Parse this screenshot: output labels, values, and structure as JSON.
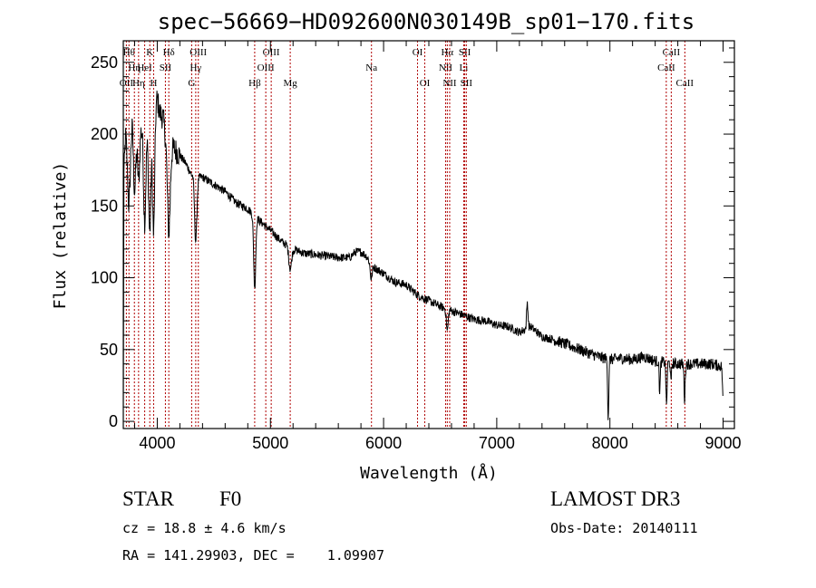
{
  "chart_data": {
    "type": "line",
    "title": "spec−56669−HD092600N030149B_sp01−170.fits",
    "xlabel": "Wavelength (Å)",
    "ylabel": "Flux (relative)",
    "xlim": [
      3700,
      9100
    ],
    "ylim": [
      -5,
      265
    ],
    "xticks": [
      4000,
      5000,
      6000,
      7000,
      8000,
      9000
    ],
    "yticks": [
      0,
      50,
      100,
      150,
      200,
      250
    ],
    "series": [
      {
        "name": "flux",
        "anchors": [
          [
            3700,
            5
          ],
          [
            3705,
            170
          ],
          [
            3720,
            200
          ],
          [
            3750,
            190
          ],
          [
            3780,
            215
          ],
          [
            3800,
            200
          ],
          [
            3830,
            215
          ],
          [
            3860,
            205
          ],
          [
            3890,
            210
          ],
          [
            3920,
            200
          ],
          [
            3950,
            215
          ],
          [
            3980,
            225
          ],
          [
            4000,
            225
          ],
          [
            4020,
            215
          ],
          [
            4050,
            212
          ],
          [
            4080,
            195
          ],
          [
            4120,
            190
          ],
          [
            4150,
            190
          ],
          [
            4200,
            185
          ],
          [
            4250,
            180
          ],
          [
            4300,
            172
          ],
          [
            4350,
            170
          ],
          [
            4400,
            170
          ],
          [
            4500,
            165
          ],
          [
            4600,
            160
          ],
          [
            4700,
            152
          ],
          [
            4800,
            148
          ],
          [
            4900,
            140
          ],
          [
            5000,
            133
          ],
          [
            5100,
            125
          ],
          [
            5200,
            120
          ],
          [
            5300,
            117
          ],
          [
            5400,
            116
          ],
          [
            5500,
            115
          ],
          [
            5600,
            114
          ],
          [
            5700,
            114
          ],
          [
            5750,
            118
          ],
          [
            5800,
            118
          ],
          [
            5850,
            115
          ],
          [
            5900,
            108
          ],
          [
            6000,
            103
          ],
          [
            6100,
            97
          ],
          [
            6200,
            95
          ],
          [
            6300,
            88
          ],
          [
            6400,
            84
          ],
          [
            6500,
            80
          ],
          [
            6600,
            77
          ],
          [
            6700,
            74
          ],
          [
            6800,
            71
          ],
          [
            6900,
            70
          ],
          [
            7000,
            67
          ],
          [
            7100,
            66
          ],
          [
            7200,
            62
          ],
          [
            7300,
            66
          ],
          [
            7400,
            59
          ],
          [
            7500,
            57
          ],
          [
            7600,
            54
          ],
          [
            7700,
            51
          ],
          [
            7800,
            48
          ],
          [
            7900,
            45
          ],
          [
            8000,
            43
          ],
          [
            8100,
            44
          ],
          [
            8200,
            43
          ],
          [
            8300,
            45
          ],
          [
            8400,
            42
          ],
          [
            8500,
            41
          ],
          [
            8600,
            40
          ],
          [
            8700,
            40
          ],
          [
            8800,
            40
          ],
          [
            8900,
            40
          ],
          [
            9000,
            38
          ]
        ],
        "features": [
          [
            3750,
            40,
            12
          ],
          [
            3800,
            40,
            12
          ],
          [
            3835,
            45,
            10
          ],
          [
            3889,
            70,
            10
          ],
          [
            3934,
            75,
            10
          ],
          [
            3968,
            90,
            10
          ],
          [
            4102,
            60,
            12
          ],
          [
            4340,
            45,
            10
          ],
          [
            4861,
            50,
            9
          ],
          [
            5175,
            15,
            12
          ],
          [
            5890,
            10,
            8
          ],
          [
            6563,
            15,
            8
          ],
          [
            7270,
            -18,
            6
          ],
          [
            7985,
            40,
            5
          ],
          [
            8440,
            20,
            5
          ],
          [
            8500,
            30,
            5
          ],
          [
            8540,
            15,
            4
          ],
          [
            8660,
            25,
            5
          ],
          [
            9000,
            25,
            5
          ]
        ]
      }
    ],
    "spectral_lines": [
      {
        "x": 3727,
        "row": 2,
        "label": "OII"
      },
      {
        "x": 3750,
        "row": 0,
        "label": "Hθ"
      },
      {
        "x": 3798,
        "row": 1,
        "label": "Hη"
      },
      {
        "x": 3835,
        "row": 2,
        "label": "Hη"
      },
      {
        "x": 3889,
        "row": 1,
        "label": "HeI"
      },
      {
        "x": 3934,
        "row": 0,
        "label": "K"
      },
      {
        "x": 3968,
        "row": 2,
        "label": "H"
      },
      {
        "x": 4072,
        "row": 1,
        "label": "SII"
      },
      {
        "x": 4102,
        "row": 0,
        "label": "Hδ"
      },
      {
        "x": 4304,
        "row": 2,
        "label": "G"
      },
      {
        "x": 4340,
        "row": 1,
        "label": "Hγ"
      },
      {
        "x": 4363,
        "row": 0,
        "label": "OIII"
      },
      {
        "x": 4861,
        "row": 2,
        "label": "Hβ"
      },
      {
        "x": 4959,
        "row": 1,
        "label": "OIII"
      },
      {
        "x": 5007,
        "row": 0,
        "label": "OIII"
      },
      {
        "x": 5175,
        "row": 2,
        "label": "Mg"
      },
      {
        "x": 5893,
        "row": 1,
        "label": "Na"
      },
      {
        "x": 6300,
        "row": 0,
        "label": "OI"
      },
      {
        "x": 6364,
        "row": 2,
        "label": "OI"
      },
      {
        "x": 6548,
        "row": 1,
        "label": "NII"
      },
      {
        "x": 6563,
        "row": 0,
        "label": "Hα"
      },
      {
        "x": 6584,
        "row": 2,
        "label": "NII"
      },
      {
        "x": 6708,
        "row": 1,
        "label": "Li"
      },
      {
        "x": 6717,
        "row": 0,
        "label": "SII"
      },
      {
        "x": 6731,
        "row": 2,
        "label": "SII"
      },
      {
        "x": 8498,
        "row": 1,
        "label": "CaII"
      },
      {
        "x": 8542,
        "row": 0,
        "label": "CaII"
      },
      {
        "x": 8662,
        "row": 2,
        "label": "CaII"
      }
    ]
  },
  "info": {
    "object_class": "STAR",
    "subclass": "F0",
    "survey": "LAMOST DR3",
    "cz": "cz = 18.8 ± 4.6 km/s",
    "obs_date": "Obs-Date: 20140111",
    "coords": "RA = 141.29903, DEC =    1.09907"
  },
  "colors": {
    "axes": "#000000",
    "spectrum": "#000000",
    "line_markers": "#b00000"
  }
}
